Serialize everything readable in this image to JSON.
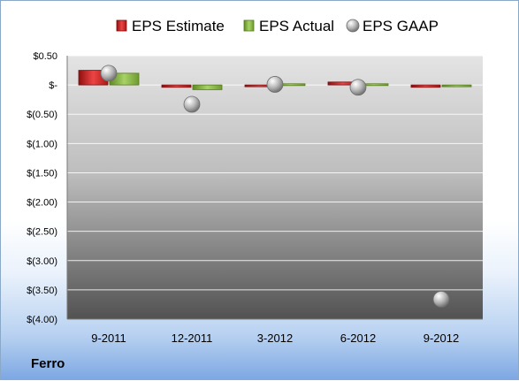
{
  "company": "Ferro",
  "chart_data": {
    "type": "bar",
    "categories": [
      "9-2011",
      "12-2011",
      "3-2012",
      "6-2012",
      "9-2012"
    ],
    "series": [
      {
        "name": "EPS Estimate",
        "kind": "bar",
        "color": "#d42a2a",
        "values": [
          0.25,
          -0.04,
          -0.01,
          0.05,
          -0.04
        ]
      },
      {
        "name": "EPS Actual",
        "kind": "bar",
        "color": "#8cbd4a",
        "values": [
          0.2,
          -0.08,
          0.02,
          0.02,
          -0.02
        ]
      },
      {
        "name": "EPS GAAP",
        "kind": "point",
        "color": "#a8a8a8",
        "values": [
          0.2,
          -0.33,
          0.01,
          -0.04,
          -3.66
        ]
      }
    ],
    "ylim": [
      -4.0,
      0.5
    ],
    "yticks": [
      0.5,
      0.0,
      -0.5,
      -1.0,
      -1.5,
      -2.0,
      -2.5,
      -3.0,
      -3.5,
      -4.0
    ],
    "ytick_labels": [
      "$0.50",
      "$-",
      "$(0.50)",
      "$(1.00)",
      "$(1.50)",
      "$(2.00)",
      "$(2.50)",
      "$(3.00)",
      "$(3.50)",
      "$(4.00)"
    ],
    "grid": true,
    "legend_position": "top"
  }
}
